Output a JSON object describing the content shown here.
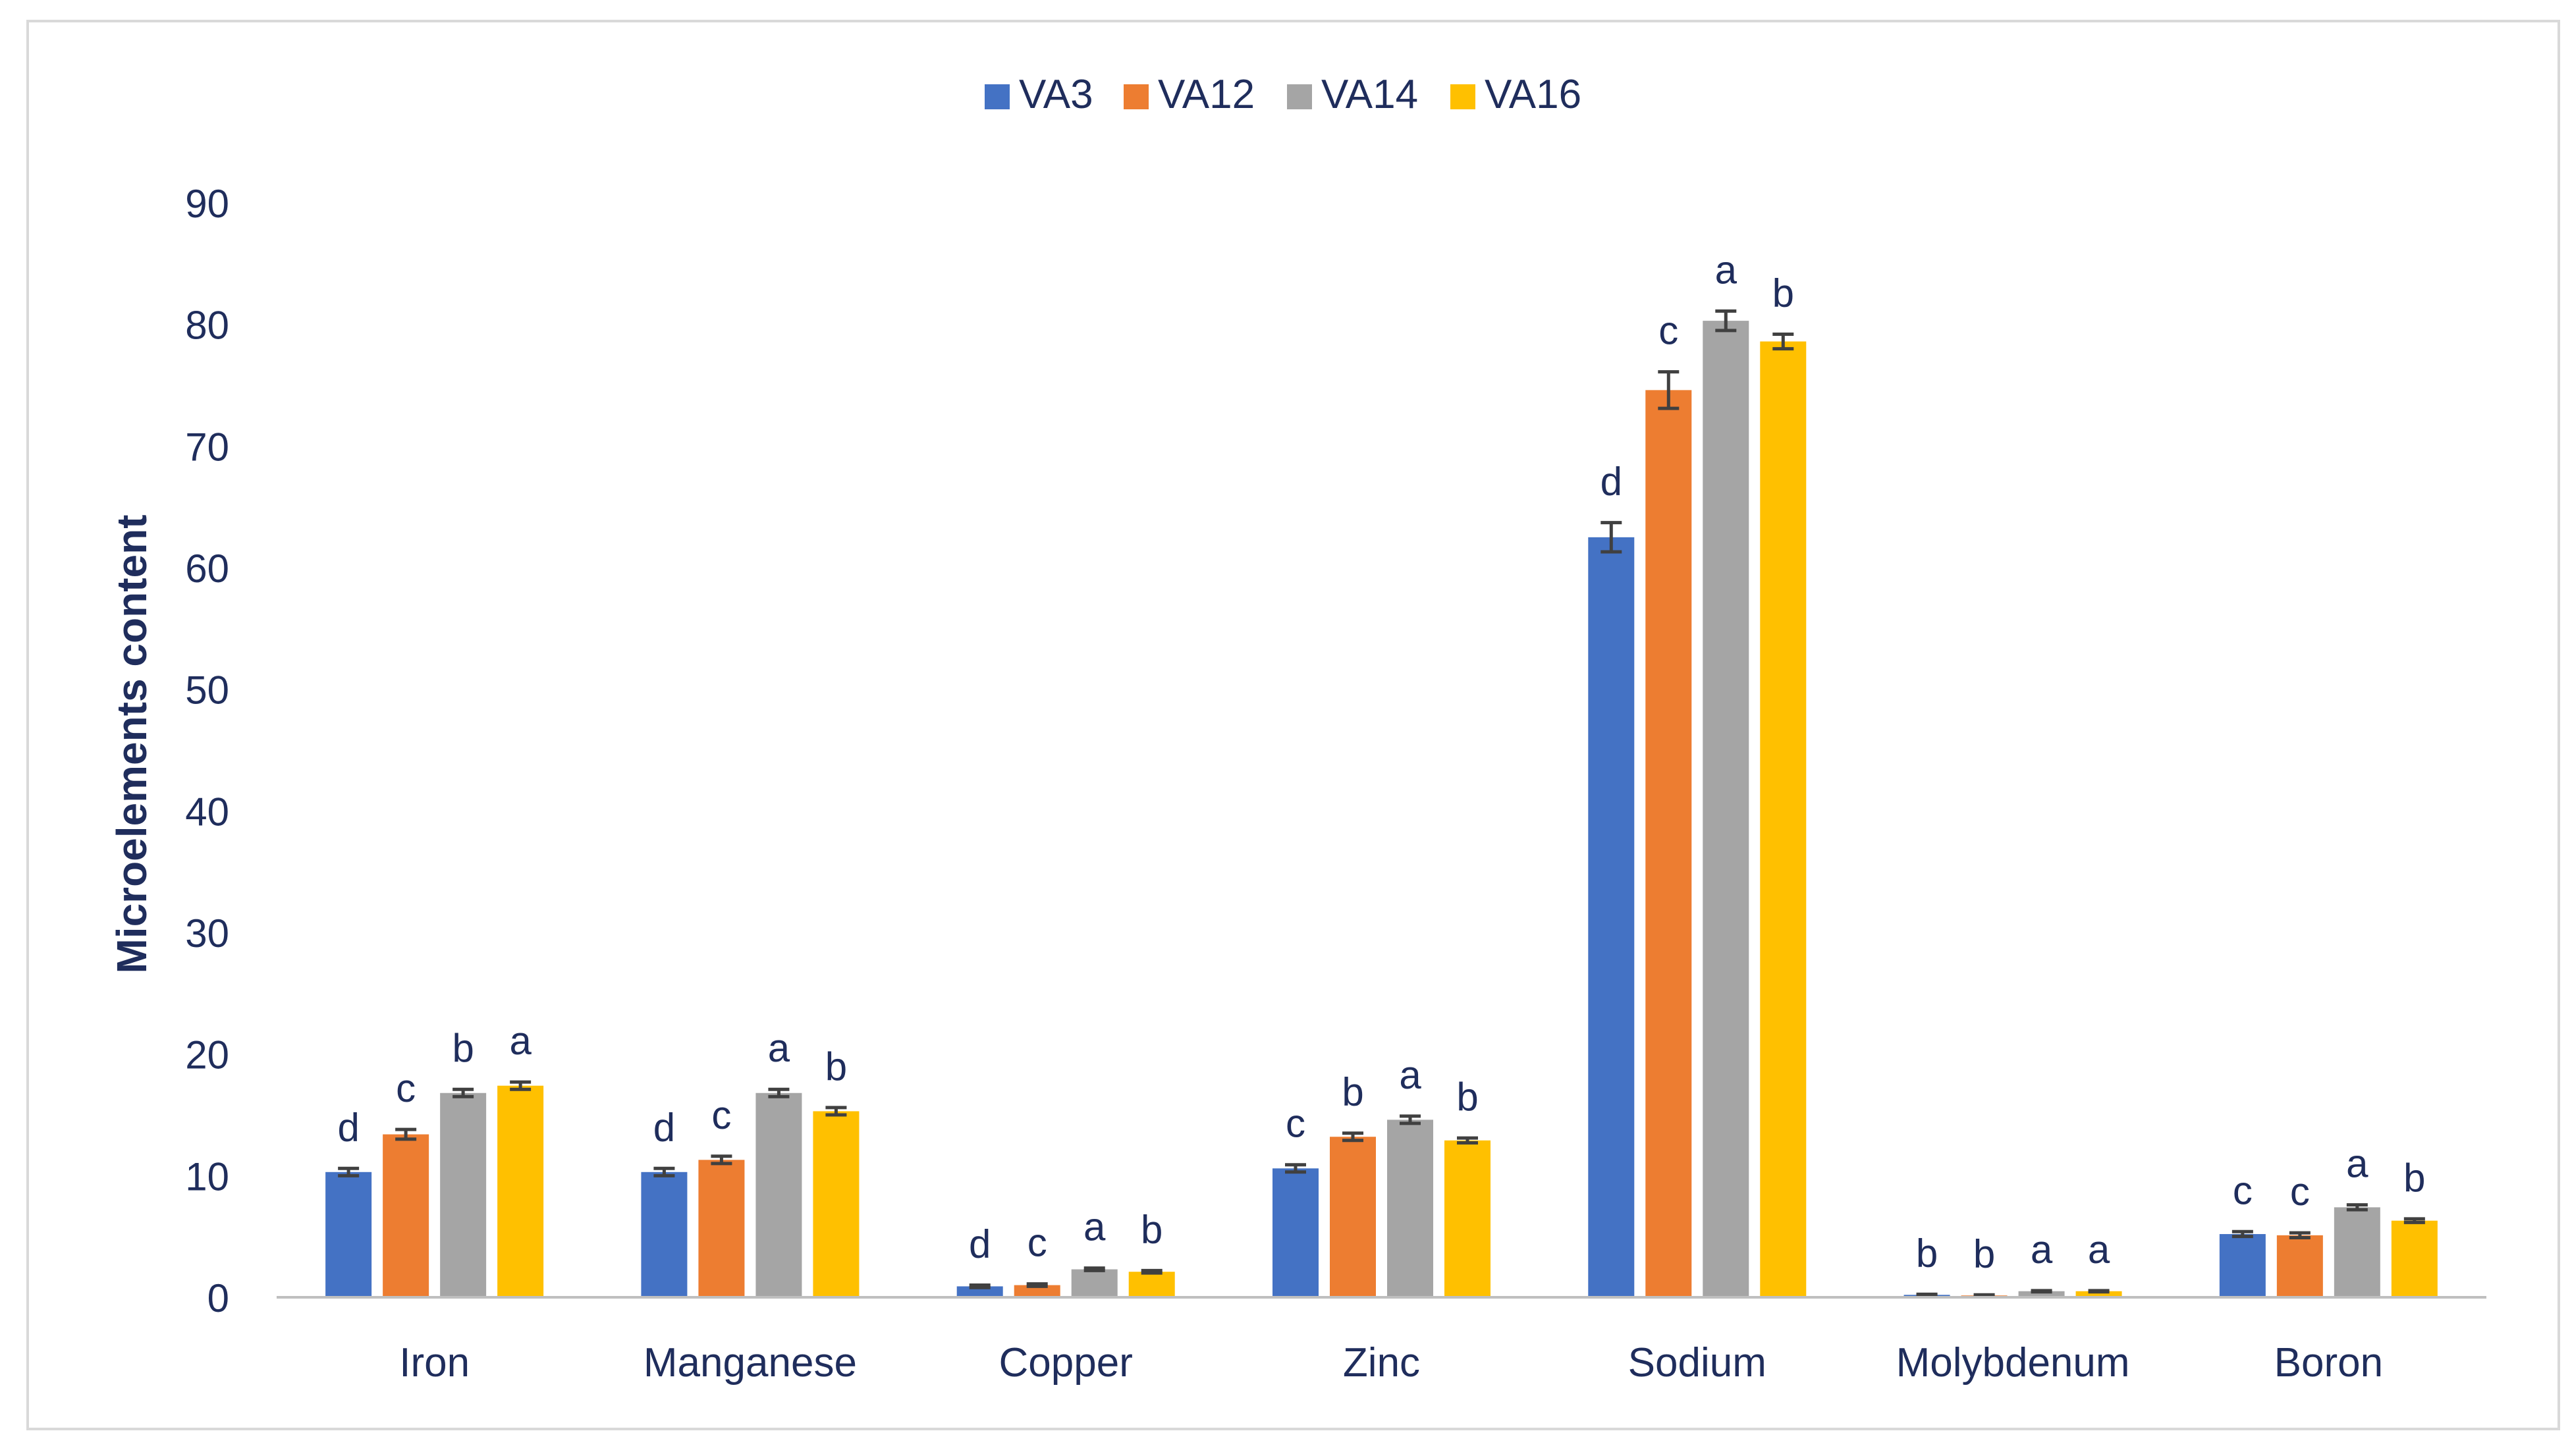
{
  "chart_data": {
    "type": "bar",
    "title": "",
    "xlabel": "",
    "ylabel": "Microelements content",
    "ylim": [
      0,
      90
    ],
    "yticks": [
      0,
      10,
      20,
      30,
      40,
      50,
      60,
      70,
      80,
      90
    ],
    "grid": false,
    "legend": "top-center",
    "categories": [
      "Iron",
      "Manganese",
      "Copper",
      "Zinc",
      "Sodium",
      "Molybdenum",
      "Boron"
    ],
    "series": [
      {
        "name": "VA3",
        "color": "#4472C4",
        "values": [
          10.3,
          10.3,
          0.9,
          10.6,
          62.5,
          0.2,
          5.2
        ],
        "errors": [
          0.3,
          0.3,
          0.1,
          0.3,
          1.2,
          0.05,
          0.2
        ],
        "letters": [
          "d",
          "d",
          "d",
          "c",
          "d",
          "b",
          "c"
        ]
      },
      {
        "name": "VA12",
        "color": "#ED7D31",
        "values": [
          13.4,
          11.3,
          1.0,
          13.2,
          74.6,
          0.15,
          5.1
        ],
        "errors": [
          0.4,
          0.3,
          0.1,
          0.3,
          1.5,
          0.05,
          0.2
        ],
        "letters": [
          "c",
          "c",
          "c",
          "b",
          "c",
          "b",
          "c"
        ]
      },
      {
        "name": "VA14",
        "color": "#A5A5A5",
        "values": [
          16.8,
          16.8,
          2.3,
          14.6,
          80.3,
          0.5,
          7.4
        ],
        "errors": [
          0.3,
          0.3,
          0.1,
          0.3,
          0.8,
          0.05,
          0.2
        ],
        "letters": [
          "b",
          "a",
          "a",
          "a",
          "a",
          "a",
          "a"
        ]
      },
      {
        "name": "VA16",
        "color": "#FFC000",
        "values": [
          17.4,
          15.3,
          2.1,
          12.9,
          78.6,
          0.5,
          6.3
        ],
        "errors": [
          0.3,
          0.3,
          0.1,
          0.2,
          0.6,
          0.05,
          0.15
        ],
        "letters": [
          "a",
          "b",
          "b",
          "b",
          "b",
          "a",
          "b"
        ]
      }
    ]
  }
}
